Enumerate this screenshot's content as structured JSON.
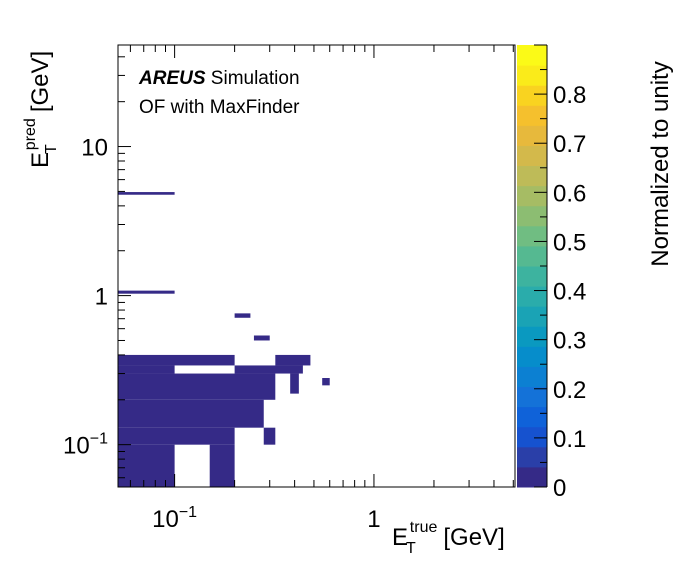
{
  "chart_data": {
    "type": "heatmap",
    "annotation_bold": "AREUS",
    "annotation_text": "Simulation",
    "subtitle": "OF with MaxFinder",
    "xlabel": {
      "main": "E",
      "sub": "T",
      "sup": "true",
      "unit": "[GeV]"
    },
    "ylabel": {
      "main": "E",
      "sub": "T",
      "sup": "pred",
      "unit": "[GeV]"
    },
    "zlabel": "Normalized to unity",
    "x_scale": "log",
    "y_scale": "log",
    "xlim": [
      0.052,
      5.1
    ],
    "ylim": [
      0.052,
      48
    ],
    "zlim": [
      0,
      0.9
    ],
    "x_ticks": [
      {
        "value": 0.1,
        "base": "10",
        "exp": "−1"
      },
      {
        "value": 1,
        "base": "1",
        "exp": ""
      }
    ],
    "y_ticks": [
      {
        "value": 0.1,
        "base": "10",
        "exp": "−1"
      },
      {
        "value": 1,
        "base": "1",
        "exp": ""
      },
      {
        "value": 10,
        "base": "10",
        "exp": ""
      }
    ],
    "z_ticks": [
      "0",
      "0.1",
      "0.2",
      "0.3",
      "0.4",
      "0.5",
      "0.6",
      "0.7",
      "0.8"
    ],
    "palette": [
      "#352a87",
      "#2a3fa8",
      "#1652cf",
      "#0f62d9",
      "#1472d8",
      "#0c80d2",
      "#068dcb",
      "#0a99c0",
      "#1aa3b5",
      "#2aacab",
      "#3db39f",
      "#55b991",
      "#70bd82",
      "#8cbd72",
      "#a6bc64",
      "#bebb58",
      "#d3b94b",
      "#e7b93c",
      "#f5c02d",
      "#f9d320",
      "#faeb1a",
      "#fbfa17"
    ],
    "cells": [
      {
        "x": [
          0.052,
          0.1
        ],
        "y": [
          4.75,
          4.95
        ],
        "z": 0.01
      },
      {
        "x": [
          0.052,
          0.1
        ],
        "y": [
          1.03,
          1.08
        ],
        "z": 0.01
      },
      {
        "x": [
          0.2,
          0.24
        ],
        "y": [
          0.71,
          0.76
        ],
        "z": 0.01
      },
      {
        "x": [
          0.25,
          0.3
        ],
        "y": [
          0.5,
          0.54
        ],
        "z": 0.01
      },
      {
        "x": [
          0.052,
          0.2
        ],
        "y": [
          0.34,
          0.4
        ],
        "z": 0.01
      },
      {
        "x": [
          0.32,
          0.48
        ],
        "y": [
          0.34,
          0.4
        ],
        "z": 0.01
      },
      {
        "x": [
          0.052,
          0.1
        ],
        "y": [
          0.3,
          0.34
        ],
        "z": 0.01
      },
      {
        "x": [
          0.2,
          0.44
        ],
        "y": [
          0.3,
          0.34
        ],
        "z": 0.01
      },
      {
        "x": [
          0.052,
          0.32
        ],
        "y": [
          0.2,
          0.3
        ],
        "z": 0.01
      },
      {
        "x": [
          0.38,
          0.42
        ],
        "y": [
          0.22,
          0.3
        ],
        "z": 0.01
      },
      {
        "x": [
          0.55,
          0.6
        ],
        "y": [
          0.25,
          0.28
        ],
        "z": 0.01
      },
      {
        "x": [
          0.052,
          0.28
        ],
        "y": [
          0.13,
          0.2
        ],
        "z": 0.01
      },
      {
        "x": [
          0.052,
          0.2
        ],
        "y": [
          0.1,
          0.13
        ],
        "z": 0.01
      },
      {
        "x": [
          0.28,
          0.32
        ],
        "y": [
          0.1,
          0.13
        ],
        "z": 0.01
      },
      {
        "x": [
          0.052,
          0.1
        ],
        "y": [
          0.052,
          0.1
        ],
        "z": 0.01
      },
      {
        "x": [
          0.15,
          0.2
        ],
        "y": [
          0.052,
          0.1
        ],
        "z": 0.01
      }
    ]
  }
}
